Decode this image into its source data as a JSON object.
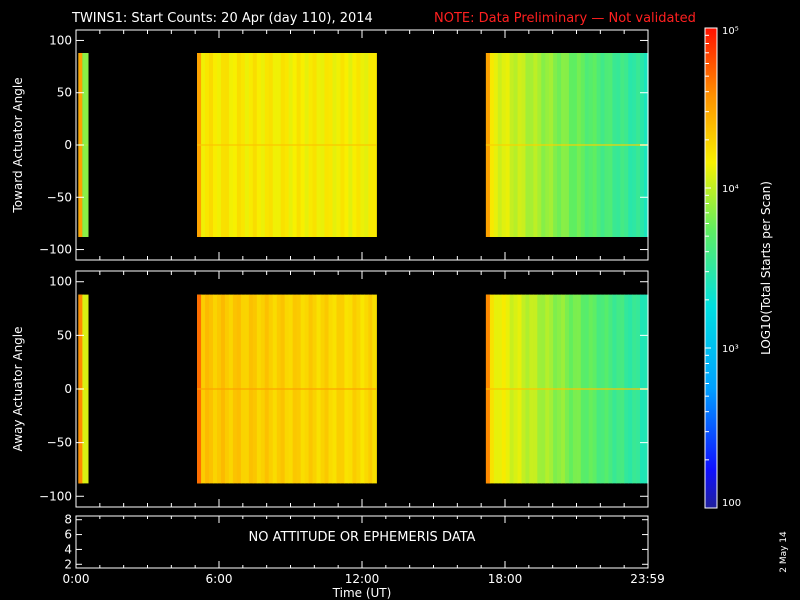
{
  "header": {
    "title": "TWINS1: Start Counts: 20 Apr (day 110), 2014",
    "note": "NOTE: Data Preliminary — Not validated"
  },
  "colorbar": {
    "label": "LOG10(Total Starts per Scan)",
    "tick_labels": [
      "100",
      "10³",
      "10⁴",
      "10⁵"
    ],
    "log_min": 2,
    "log_max": 5
  },
  "footer": {
    "xlabel": "Time (UT)",
    "x_tick_labels": [
      "0:00",
      "6:00",
      "12:00",
      "18:00",
      "23:59"
    ],
    "no_data_message": "NO ATTITUDE OR EPHEMERIS DATA",
    "date_stamp": "2 May 14"
  },
  "chart_data": [
    {
      "type": "heatmap",
      "panel": "toward",
      "ylabel": "Toward Actuator Angle",
      "x_unit": "hours UT",
      "xlim": [
        0,
        24
      ],
      "ylim": [
        -110,
        110
      ],
      "y_tick_labels": [
        "100",
        "50",
        "0",
        "−50",
        "−100"
      ],
      "y_ticks": [
        100,
        50,
        0,
        -50,
        -100
      ],
      "angle_range": [
        -88,
        88
      ],
      "data_blocks": [
        {
          "start": 0.1,
          "end": 0.5,
          "log10_counts": 3.8,
          "edge": 4.5
        },
        {
          "start": 5.08,
          "end": 12.6,
          "log10_counts_start": 4.2,
          "log10_counts_end": 4.15,
          "edge": 4.5
        },
        {
          "start": 17.2,
          "end": 24.0,
          "log10_counts_start": 4.15,
          "log10_counts_end": 3.45,
          "edge": 4.5
        }
      ]
    },
    {
      "type": "heatmap",
      "panel": "away",
      "ylabel": "Away Actuator Angle",
      "x_unit": "hours UT",
      "xlim": [
        0,
        24
      ],
      "ylim": [
        -110,
        110
      ],
      "y_tick_labels": [
        "100",
        "50",
        "0",
        "−50",
        "−100"
      ],
      "y_ticks": [
        100,
        50,
        0,
        -50,
        -100
      ],
      "angle_range": [
        -88,
        88
      ],
      "data_blocks": [
        {
          "start": 0.1,
          "end": 0.5,
          "log10_counts": 4.05,
          "edge": 4.6
        },
        {
          "start": 5.08,
          "end": 12.6,
          "log10_counts_start": 4.35,
          "log10_counts_end": 4.25,
          "edge": 4.7
        },
        {
          "start": 17.2,
          "end": 24.0,
          "log10_counts_start": 4.2,
          "log10_counts_end": 3.45,
          "edge": 4.6
        }
      ]
    },
    {
      "type": "line",
      "panel": "ephemeris",
      "xlim": [
        0,
        24
      ],
      "ylim": [
        1.5,
        8.5
      ],
      "y_tick_labels": [
        "8",
        "6",
        "4",
        "2"
      ],
      "y_ticks": [
        8,
        6,
        4,
        2
      ],
      "series": []
    }
  ]
}
